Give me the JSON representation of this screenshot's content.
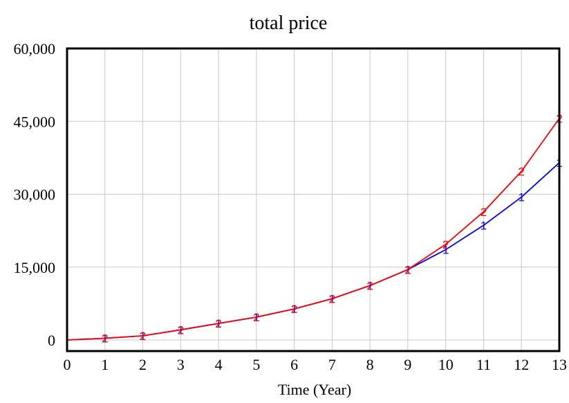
{
  "chart_data": {
    "type": "line",
    "title": "total price",
    "xlabel": "Time (Year)",
    "ylabel": "",
    "x": [
      0,
      1,
      2,
      3,
      4,
      5,
      6,
      7,
      8,
      9,
      10,
      11,
      12,
      13
    ],
    "xlim": [
      0,
      13
    ],
    "ylim": [
      0,
      60000
    ],
    "x_ticks": [
      "0",
      "1",
      "2",
      "3",
      "4",
      "5",
      "6",
      "7",
      "8",
      "9",
      "10",
      "11",
      "12",
      "13"
    ],
    "y_ticks": [
      {
        "value": 0,
        "label": "0"
      },
      {
        "value": 15000,
        "label": "15,000"
      },
      {
        "value": 30000,
        "label": "30,000"
      },
      {
        "value": 45000,
        "label": "45,000"
      },
      {
        "value": 60000,
        "label": "60,000"
      }
    ],
    "grid": true,
    "series": [
      {
        "name": "1",
        "color": "#0000ff",
        "values": [
          0,
          350,
          850,
          2100,
          3400,
          4700,
          6400,
          8500,
          11200,
          14500,
          18600,
          23600,
          29400,
          36500
        ]
      },
      {
        "name": "2",
        "color": "#ff0000",
        "values": [
          0,
          350,
          850,
          2100,
          3400,
          4700,
          6400,
          8500,
          11200,
          14500,
          19700,
          26400,
          34700,
          45600
        ]
      }
    ],
    "marker_x": [
      1,
      2,
      3,
      4,
      5,
      6,
      7,
      8,
      9,
      10,
      11,
      12,
      13
    ]
  }
}
